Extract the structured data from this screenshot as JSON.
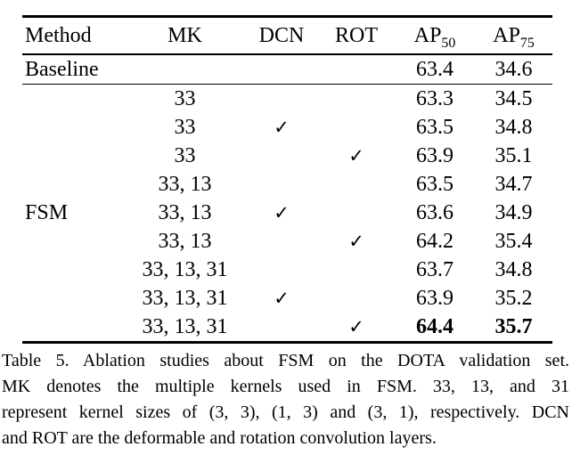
{
  "table": {
    "columns": [
      {
        "label": "Method"
      },
      {
        "label": "MK"
      },
      {
        "label": "DCN"
      },
      {
        "label": "ROT"
      },
      {
        "label": "AP",
        "sub": "50"
      },
      {
        "label": "AP",
        "sub": "75"
      }
    ],
    "baseline": {
      "method": "Baseline",
      "mk": "",
      "dcn": "",
      "rot": "",
      "ap50": "63.4",
      "ap75": "34.6"
    },
    "group_label": "FSM",
    "rows": [
      {
        "mk": "33",
        "dcn": "",
        "rot": "",
        "ap50": "63.3",
        "ap75": "34.5"
      },
      {
        "mk": "33",
        "dcn": "✓",
        "rot": "",
        "ap50": "63.5",
        "ap75": "34.8"
      },
      {
        "mk": "33",
        "dcn": "",
        "rot": "✓",
        "ap50": "63.9",
        "ap75": "35.1"
      },
      {
        "mk": "33, 13",
        "dcn": "",
        "rot": "",
        "ap50": "63.5",
        "ap75": "34.7"
      },
      {
        "mk": "33, 13",
        "dcn": "✓",
        "rot": "",
        "ap50": "63.6",
        "ap75": "34.9"
      },
      {
        "mk": "33, 13",
        "dcn": "",
        "rot": "✓",
        "ap50": "64.2",
        "ap75": "35.4"
      },
      {
        "mk": "33, 13, 31",
        "dcn": "",
        "rot": "",
        "ap50": "63.7",
        "ap75": "34.8"
      },
      {
        "mk": "33, 13, 31",
        "dcn": "✓",
        "rot": "",
        "ap50": "63.9",
        "ap75": "35.2"
      },
      {
        "mk": "33, 13, 31",
        "dcn": "",
        "rot": "✓",
        "ap50": "64.4",
        "ap75": "35.7"
      }
    ]
  },
  "caption": {
    "lines": [
      "Table 5. Ablation studies about FSM on the DOTA validation set.",
      "MK denotes the multiple kernels used in FSM. 33, 13, and 31",
      "represent kernel sizes of (3, 3), (1, 3) and (3, 1), respectively. DCN",
      "and ROT are the deformable and rotation convolution layers."
    ]
  }
}
